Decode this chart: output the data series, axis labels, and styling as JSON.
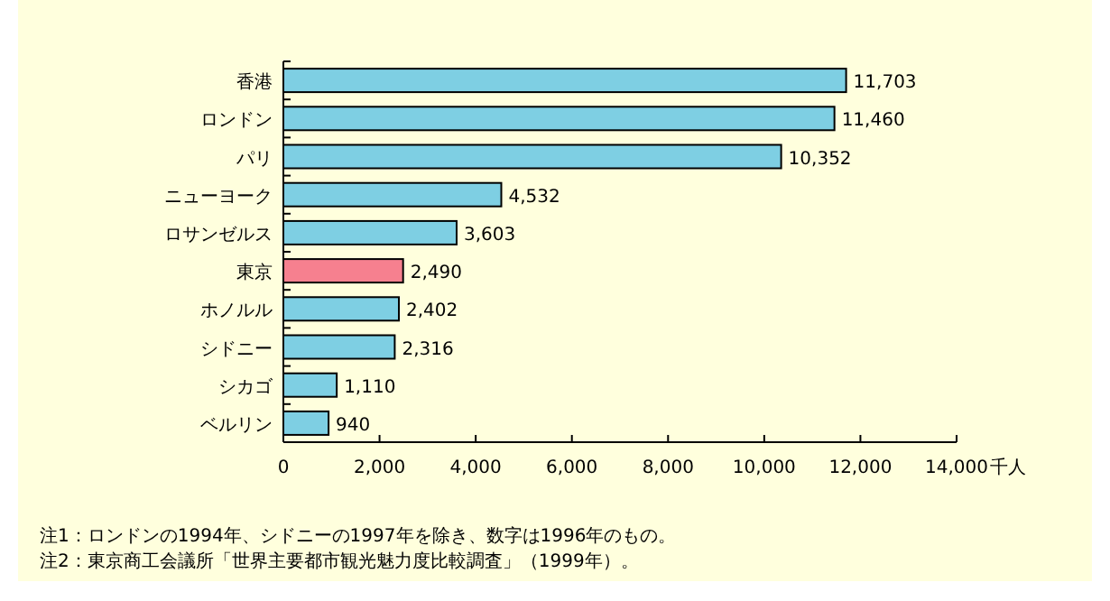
{
  "chart_data": {
    "type": "bar",
    "orientation": "horizontal",
    "categories": [
      "香港",
      "ロンドン",
      "パリ",
      "ニューヨーク",
      "ロサンゼルス",
      "東京",
      "ホノルル",
      "シドニー",
      "シカゴ",
      "ベルリン"
    ],
    "values": [
      11703,
      11460,
      10352,
      4532,
      3603,
      2490,
      2402,
      2316,
      1110,
      940
    ],
    "colors": [
      "#7ecfe3",
      "#7ecfe3",
      "#7ecfe3",
      "#7ecfe3",
      "#7ecfe3",
      "#f6808f",
      "#7ecfe3",
      "#7ecfe3",
      "#7ecfe3",
      "#7ecfe3"
    ],
    "xlim": [
      0,
      14000
    ],
    "xticks": [
      {
        "value": 0,
        "label": "0"
      },
      {
        "value": 2000,
        "label": "2,000"
      },
      {
        "value": 4000,
        "label": "4,000"
      },
      {
        "value": 6000,
        "label": "6,000"
      },
      {
        "value": 8000,
        "label": "8,000"
      },
      {
        "value": 10000,
        "label": "10,000"
      },
      {
        "value": 12000,
        "label": "12,000"
      },
      {
        "value": 14000,
        "label": "14,000"
      }
    ],
    "xlabel": "千人",
    "value_labels": [
      "11,703",
      "11,460",
      "10,352",
      "4,532",
      "3,603",
      "2,490",
      "2,402",
      "2,316",
      "1,110",
      "940"
    ],
    "annotations": [
      "注1：ロンドンの1994年、シドニーの1997年を除き、数字は1996年のもの。",
      "注2：東京商工会議所「世界主要都市観光魅力度比較調査」（1999年）。"
    ]
  }
}
